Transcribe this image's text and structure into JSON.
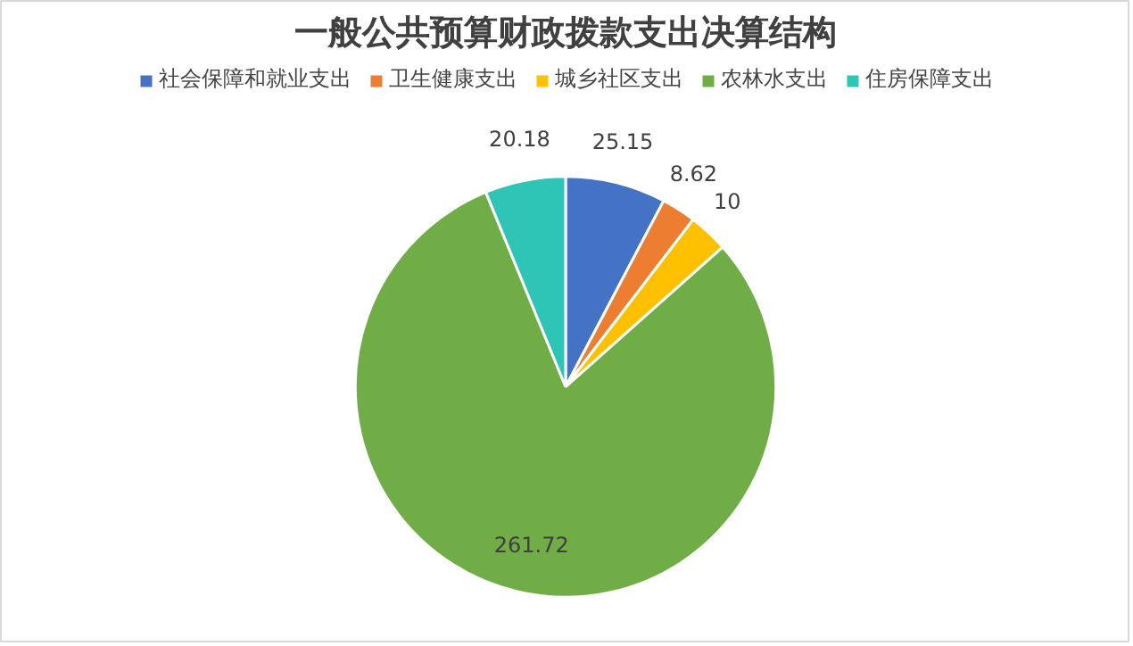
{
  "chart_data": {
    "type": "pie",
    "title": "一般公共预算财政拨款支出决算结构",
    "categories": [
      "社会保障和就业支出",
      "卫生健康支出",
      "城乡社区支出",
      "农林水支出",
      "住房保障支出"
    ],
    "values": [
      25.15,
      8.62,
      10,
      261.72,
      20.18
    ],
    "colors": [
      "#4472c4",
      "#ed7d31",
      "#ffc000",
      "#70ad47",
      "#2ec4b6"
    ],
    "data_labels": true,
    "legend": "top"
  }
}
